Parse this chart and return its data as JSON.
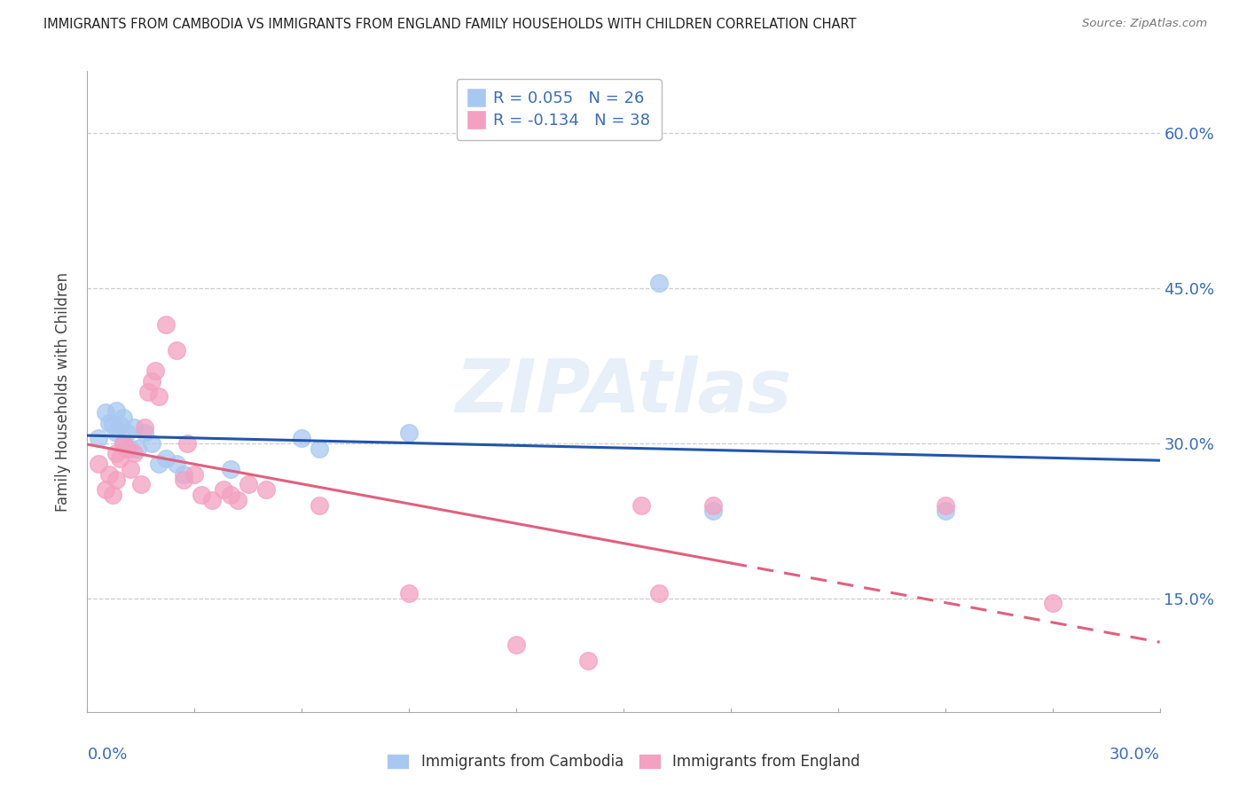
{
  "title": "IMMIGRANTS FROM CAMBODIA VS IMMIGRANTS FROM ENGLAND FAMILY HOUSEHOLDS WITH CHILDREN CORRELATION CHART",
  "source": "Source: ZipAtlas.com",
  "ylabel": "Family Households with Children",
  "ytick_values": [
    0.15,
    0.3,
    0.45,
    0.6
  ],
  "ytick_labels": [
    "15.0%",
    "30.0%",
    "45.0%",
    "60.0%"
  ],
  "xlim": [
    0.0,
    0.3
  ],
  "ylim": [
    0.04,
    0.66
  ],
  "cambodia_R": "0.055",
  "cambodia_N": "26",
  "england_R": "-0.134",
  "england_N": "38",
  "cambodia_color": "#a8c8f0",
  "england_color": "#f4a0c0",
  "cambodia_line_color": "#2255aa",
  "england_line_color": "#e06080",
  "england_line_solid_end": 0.18,
  "cambodia_x": [
    0.003,
    0.005,
    0.006,
    0.007,
    0.008,
    0.008,
    0.009,
    0.01,
    0.01,
    0.011,
    0.012,
    0.013,
    0.014,
    0.016,
    0.018,
    0.02,
    0.022,
    0.025,
    0.027,
    0.04,
    0.06,
    0.065,
    0.09,
    0.16,
    0.175,
    0.24
  ],
  "cambodia_y": [
    0.305,
    0.33,
    0.32,
    0.318,
    0.332,
    0.31,
    0.318,
    0.325,
    0.3,
    0.31,
    0.295,
    0.315,
    0.295,
    0.31,
    0.3,
    0.28,
    0.285,
    0.28,
    0.27,
    0.275,
    0.305,
    0.295,
    0.31,
    0.455,
    0.235,
    0.235
  ],
  "england_x": [
    0.003,
    0.005,
    0.006,
    0.007,
    0.008,
    0.008,
    0.009,
    0.01,
    0.011,
    0.012,
    0.013,
    0.015,
    0.016,
    0.017,
    0.018,
    0.019,
    0.02,
    0.022,
    0.025,
    0.027,
    0.028,
    0.03,
    0.032,
    0.035,
    0.038,
    0.04,
    0.042,
    0.045,
    0.05,
    0.065,
    0.09,
    0.12,
    0.14,
    0.155,
    0.16,
    0.175,
    0.24,
    0.27
  ],
  "england_y": [
    0.28,
    0.255,
    0.27,
    0.25,
    0.265,
    0.29,
    0.285,
    0.3,
    0.295,
    0.275,
    0.29,
    0.26,
    0.315,
    0.35,
    0.36,
    0.37,
    0.345,
    0.415,
    0.39,
    0.265,
    0.3,
    0.27,
    0.25,
    0.245,
    0.255,
    0.25,
    0.245,
    0.26,
    0.255,
    0.24,
    0.155,
    0.105,
    0.09,
    0.24,
    0.155,
    0.24,
    0.24,
    0.145
  ]
}
